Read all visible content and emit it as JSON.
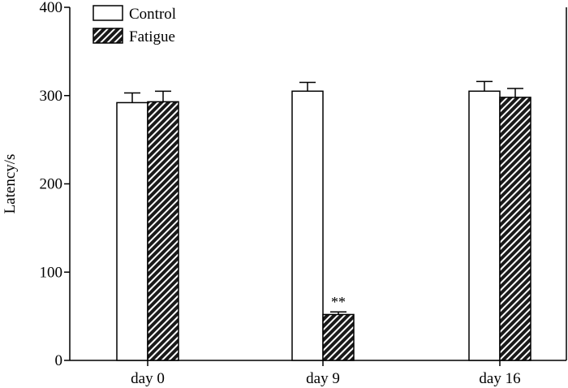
{
  "chart_data": {
    "type": "bar",
    "title": "",
    "xlabel": "",
    "ylabel": "Latency/s",
    "ylim": [
      0,
      400
    ],
    "yticks": [
      0,
      100,
      200,
      300,
      400
    ],
    "categories": [
      "day 0",
      "day 9",
      "day 16"
    ],
    "series": [
      {
        "name": "Control",
        "values": [
          292,
          305,
          305
        ],
        "errors": [
          11,
          10,
          11
        ],
        "pattern": "open"
      },
      {
        "name": "Fatigue",
        "values": [
          293,
          52,
          298
        ],
        "errors": [
          12,
          3,
          10
        ],
        "pattern": "hatched"
      }
    ],
    "annotations": [
      {
        "text": "**",
        "category": "day 9",
        "series": "Fatigue"
      }
    ],
    "legend": "top-left",
    "grid": false
  }
}
